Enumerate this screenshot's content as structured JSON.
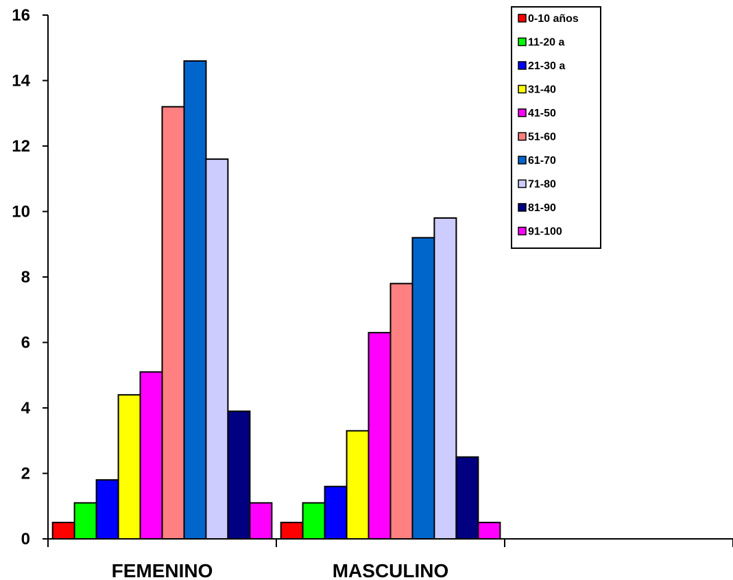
{
  "chart_data": {
    "type": "bar",
    "categories": [
      "FEMENINO",
      "MASCULINO",
      ""
    ],
    "series": [
      {
        "name": "0-10 años",
        "color": "#ff0000",
        "values": [
          0.5,
          0.5,
          null
        ]
      },
      {
        "name": "11-20 a",
        "color": "#00ff00",
        "values": [
          1.1,
          1.1,
          null
        ]
      },
      {
        "name": "21-30 a",
        "color": "#0000ff",
        "values": [
          1.8,
          1.6,
          null
        ]
      },
      {
        "name": "31-40",
        "color": "#ffff00",
        "values": [
          4.4,
          3.3,
          null
        ]
      },
      {
        "name": "41-50",
        "color": "#ff00ff",
        "values": [
          5.1,
          6.3,
          null
        ]
      },
      {
        "name": "51-60",
        "color": "#ff8080",
        "values": [
          13.2,
          7.8,
          null
        ]
      },
      {
        "name": "61-70",
        "color": "#0066cc",
        "values": [
          14.6,
          9.2,
          null
        ]
      },
      {
        "name": "71-80",
        "color": "#ccccff",
        "values": [
          11.6,
          9.8,
          null
        ]
      },
      {
        "name": "81-90",
        "color": "#000080",
        "values": [
          3.9,
          2.5,
          null
        ]
      },
      {
        "name": "91-100",
        "color": "#ff00ff",
        "values": [
          1.1,
          0.5,
          null
        ]
      }
    ],
    "yticks": [
      "0",
      "2",
      "4",
      "6",
      "8",
      "10",
      "12",
      "14",
      "16"
    ],
    "ylim": [
      0,
      16
    ],
    "grid": false,
    "legend_position": "top-right"
  }
}
